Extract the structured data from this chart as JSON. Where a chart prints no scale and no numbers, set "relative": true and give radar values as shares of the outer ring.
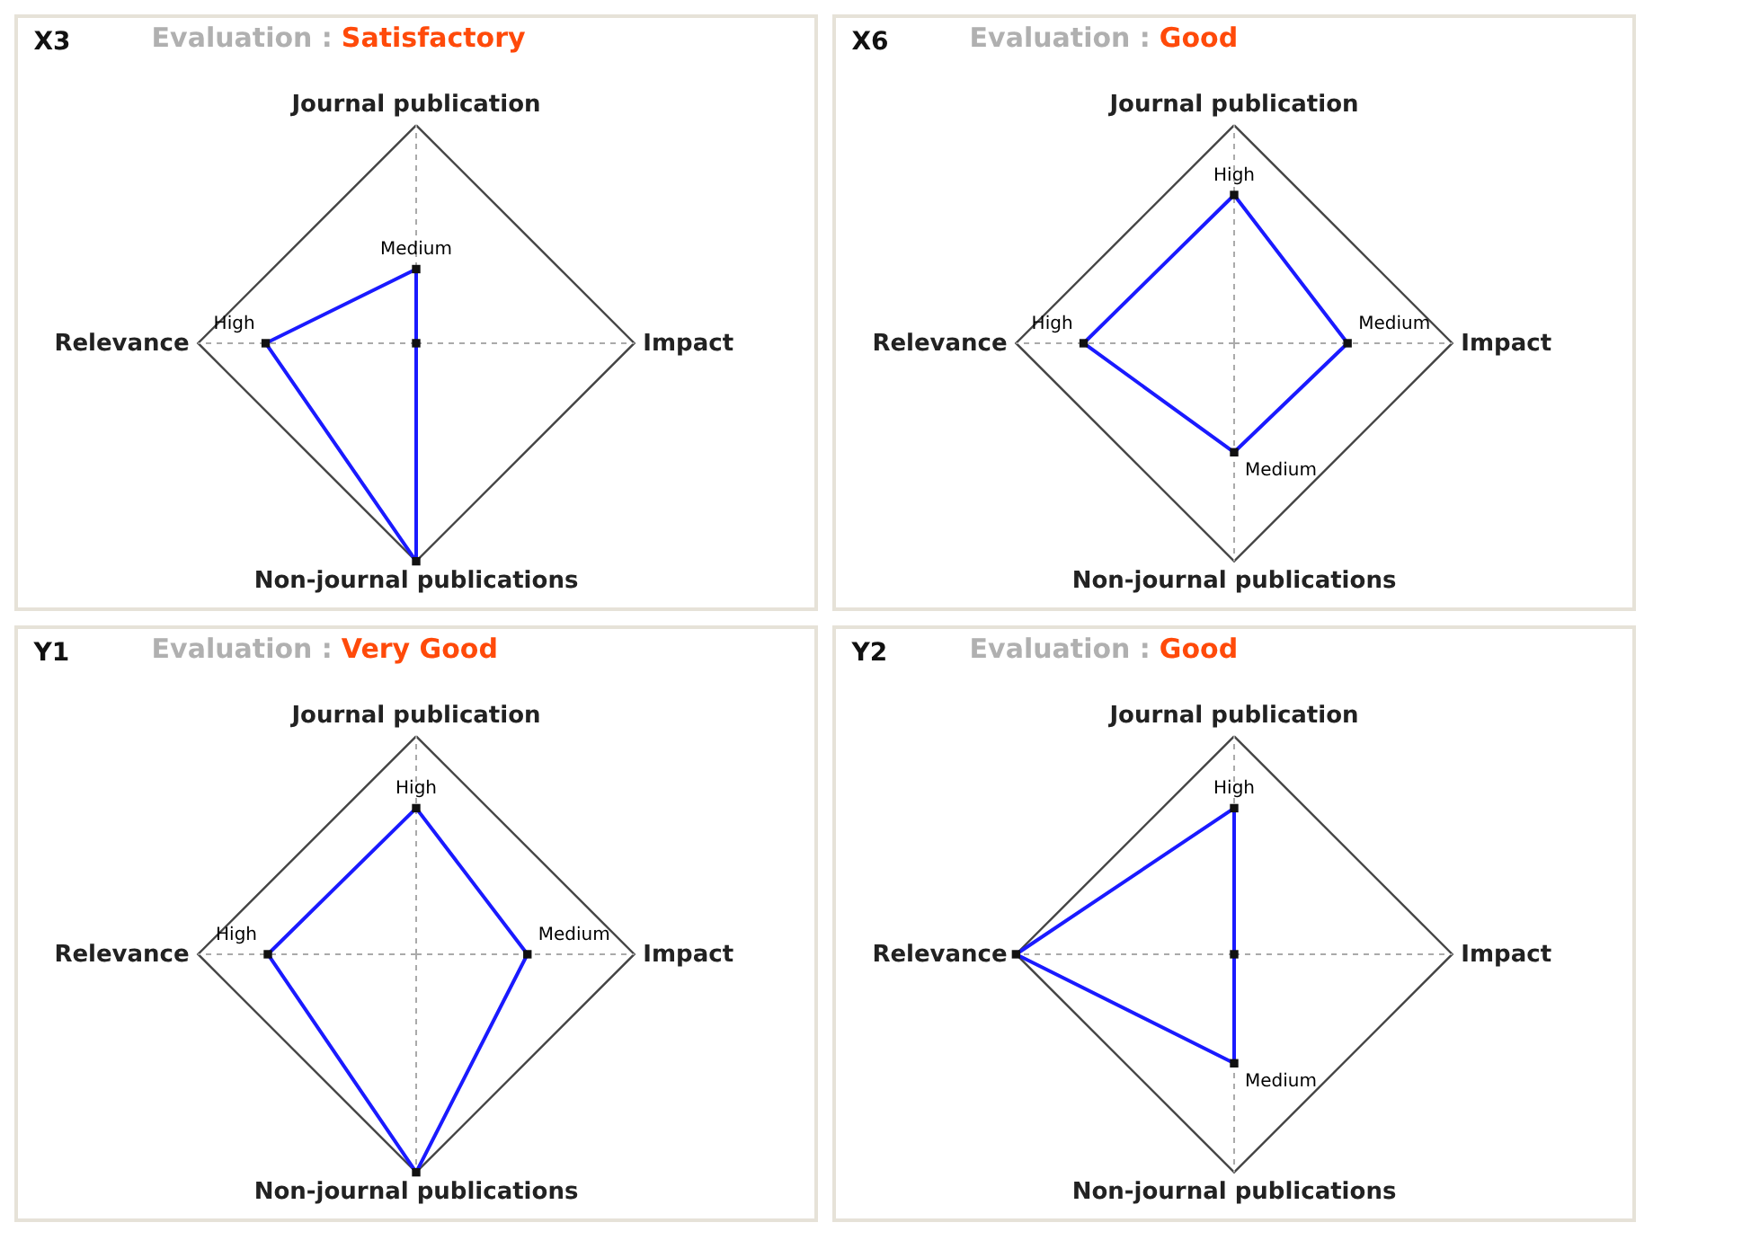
{
  "chart_data": [
    {
      "type": "radar",
      "title": "X3",
      "subtitle": "Evaluation : Satisfactory",
      "categories": [
        "Journal publication",
        "Impact",
        "Non-journal publications",
        "Relevance"
      ],
      "relative": true,
      "grid": true,
      "marker": "square",
      "series": [
        {
          "color": "#1a1aff",
          "values": [
            0.34,
            0,
            1,
            0.69
          ]
        }
      ],
      "annotations": [
        {
          "text": "Medium",
          "x": "Journal publication"
        },
        {
          "text": "High",
          "x": "Relevance"
        }
      ]
    },
    {
      "type": "radar",
      "title": "X6",
      "subtitle": "Evaluation : Good",
      "categories": [
        "Journal publication",
        "Impact",
        "Non-journal publications",
        "Relevance"
      ],
      "relative": true,
      "grid": true,
      "marker": "square",
      "series": [
        {
          "color": "#1a1aff",
          "values": [
            0.68,
            0.52,
            0.5,
            0.69
          ]
        }
      ],
      "annotations": [
        {
          "text": "High",
          "x": "Journal publication"
        },
        {
          "text": "Medium",
          "x": "Impact"
        },
        {
          "text": "Medium",
          "x": "Non-journal publications"
        },
        {
          "text": "High",
          "x": "Relevance"
        }
      ]
    },
    {
      "type": "radar",
      "title": "Y1",
      "subtitle": "Evaluation : Very Good",
      "categories": [
        "Journal publication",
        "Impact",
        "Non-journal publications",
        "Relevance"
      ],
      "relative": true,
      "grid": true,
      "marker": "square",
      "series": [
        {
          "color": "#1a1aff",
          "values": [
            0.67,
            0.51,
            1,
            0.68
          ]
        }
      ],
      "annotations": [
        {
          "text": "High",
          "x": "Journal publication"
        },
        {
          "text": "Medium",
          "x": "Impact"
        },
        {
          "text": "High",
          "x": "Relevance"
        }
      ]
    },
    {
      "type": "radar",
      "title": "Y2",
      "subtitle": "Evaluation : Good",
      "categories": [
        "Journal publication",
        "Impact",
        "Non-journal publications",
        "Relevance"
      ],
      "relative": true,
      "grid": true,
      "marker": "square",
      "series": [
        {
          "color": "#1a1aff",
          "values": [
            0.67,
            0,
            0.5,
            1
          ]
        }
      ],
      "annotations": [
        {
          "text": "High",
          "x": "Journal publication"
        },
        {
          "text": "Medium",
          "x": "Non-journal publications"
        }
      ]
    }
  ]
}
